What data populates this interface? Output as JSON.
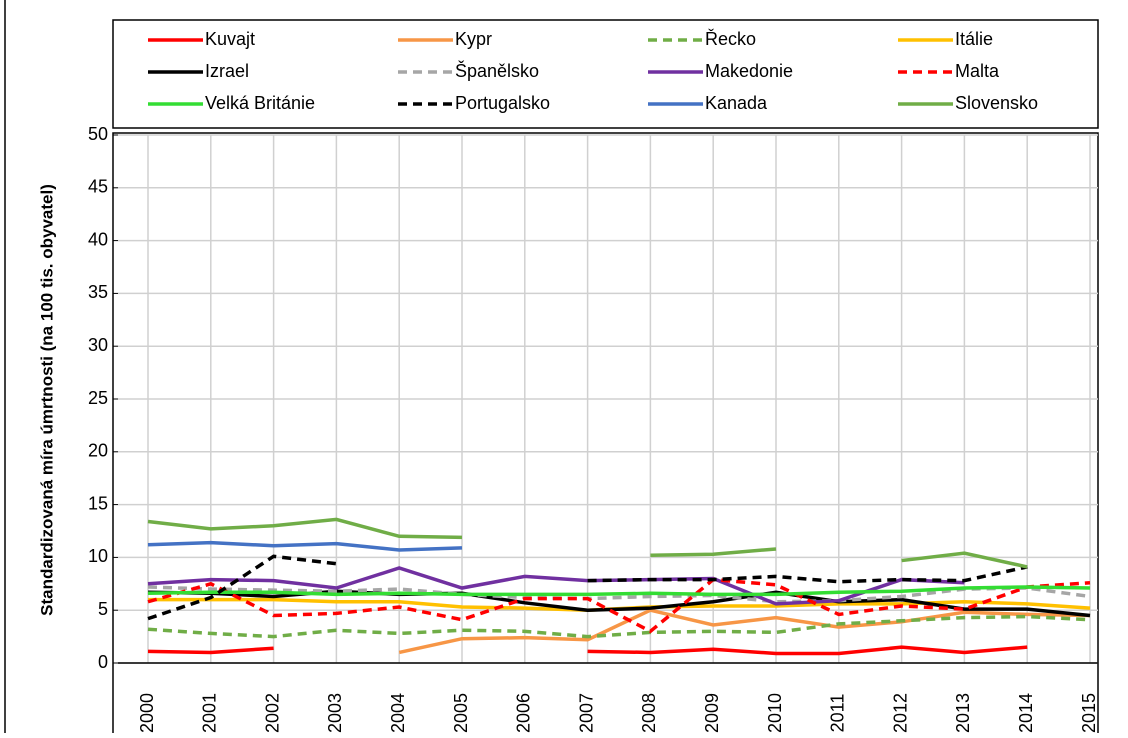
{
  "chart_data": {
    "type": "line",
    "y_label": "Standardizovaná míra úmrtnosti (na 100 tis. obyvatel)",
    "categories": [
      "2000",
      "2001",
      "2002",
      "2003",
      "2004",
      "2005",
      "2006",
      "2007",
      "2008",
      "2009",
      "2010",
      "2011",
      "2012",
      "2013",
      "2014",
      "2015"
    ],
    "ylim": [
      0,
      50
    ],
    "yticks": [
      0,
      5,
      10,
      15,
      20,
      25,
      30,
      35,
      40,
      45,
      50
    ],
    "grid": true,
    "legend": "top",
    "series": [
      {
        "name": "Kuvajt",
        "color": "#ff0000",
        "dashed": false,
        "values": [
          1.1,
          1.0,
          1.4,
          null,
          null,
          null,
          null,
          1.1,
          1.0,
          1.3,
          0.9,
          0.9,
          1.5,
          1.0,
          1.5,
          null
        ]
      },
      {
        "name": "Kypr",
        "color": "#f79646",
        "dashed": false,
        "values": [
          null,
          null,
          null,
          null,
          1.0,
          2.3,
          2.4,
          2.2,
          5.0,
          3.6,
          4.3,
          3.4,
          3.9,
          4.8,
          4.6,
          4.5
        ]
      },
      {
        "name": "Řecko",
        "color": "#70ad47",
        "dashed": true,
        "values": [
          3.2,
          2.8,
          2.5,
          3.1,
          2.8,
          3.1,
          3.0,
          2.5,
          2.9,
          3.0,
          2.9,
          3.7,
          4.0,
          4.3,
          4.4,
          4.1
        ]
      },
      {
        "name": "Itálie",
        "color": "#ffc000",
        "dashed": false,
        "values": [
          6.0,
          6.0,
          6.0,
          5.8,
          5.8,
          5.3,
          5.2,
          5.0,
          5.3,
          5.4,
          5.4,
          5.6,
          5.6,
          5.8,
          5.6,
          5.2
        ]
      },
      {
        "name": "Izrael",
        "color": "#000000",
        "dashed": false,
        "values": [
          6.7,
          6.6,
          6.3,
          6.8,
          6.5,
          6.6,
          5.7,
          5.0,
          5.2,
          5.8,
          6.7,
          5.8,
          6.0,
          5.1,
          5.1,
          4.5
        ]
      },
      {
        "name": "Španělsko",
        "color": "#a6a6a6",
        "dashed": true,
        "values": [
          7.2,
          7.0,
          6.9,
          6.8,
          7.0,
          6.5,
          6.2,
          6.1,
          6.3,
          6.4,
          5.8,
          5.9,
          6.3,
          7.0,
          7.1,
          6.3
        ]
      },
      {
        "name": "Makedonie",
        "color": "#7030a0",
        "dashed": false,
        "values": [
          7.5,
          7.9,
          7.8,
          7.1,
          9.0,
          7.1,
          8.2,
          7.8,
          7.9,
          8.0,
          5.6,
          5.9,
          7.9,
          7.6,
          null,
          null
        ]
      },
      {
        "name": "Malta",
        "color": "#ff0000",
        "dashed": true,
        "values": [
          5.8,
          7.5,
          4.5,
          4.7,
          5.3,
          4.1,
          6.1,
          6.1,
          3.0,
          7.9,
          7.4,
          4.6,
          5.4,
          5.1,
          7.2,
          7.6
        ]
      },
      {
        "name": "Velká Británie",
        "color": "#33dd33",
        "dashed": false,
        "values": [
          6.6,
          6.7,
          6.7,
          6.5,
          6.6,
          6.5,
          6.5,
          6.5,
          6.6,
          6.5,
          6.5,
          6.7,
          6.8,
          7.1,
          7.2,
          7.1
        ]
      },
      {
        "name": "Portugalsko",
        "color": "#000000",
        "dashed": true,
        "values": [
          4.2,
          6.2,
          10.1,
          9.4,
          null,
          null,
          null,
          7.8,
          7.9,
          7.9,
          8.2,
          7.7,
          7.9,
          7.8,
          9.1,
          null
        ]
      },
      {
        "name": "Kanada",
        "color": "#4472c4",
        "dashed": false,
        "values": [
          11.2,
          11.4,
          11.1,
          11.3,
          10.7,
          10.9,
          null,
          null,
          null,
          null,
          null,
          null,
          null,
          null,
          null,
          null
        ]
      },
      {
        "name": "Slovensko",
        "color": "#70ad47",
        "dashed": false,
        "values": [
          13.4,
          12.7,
          13.0,
          13.6,
          12.0,
          11.9,
          null,
          null,
          10.2,
          10.3,
          10.8,
          null,
          9.7,
          10.4,
          9.1,
          null
        ]
      }
    ]
  }
}
